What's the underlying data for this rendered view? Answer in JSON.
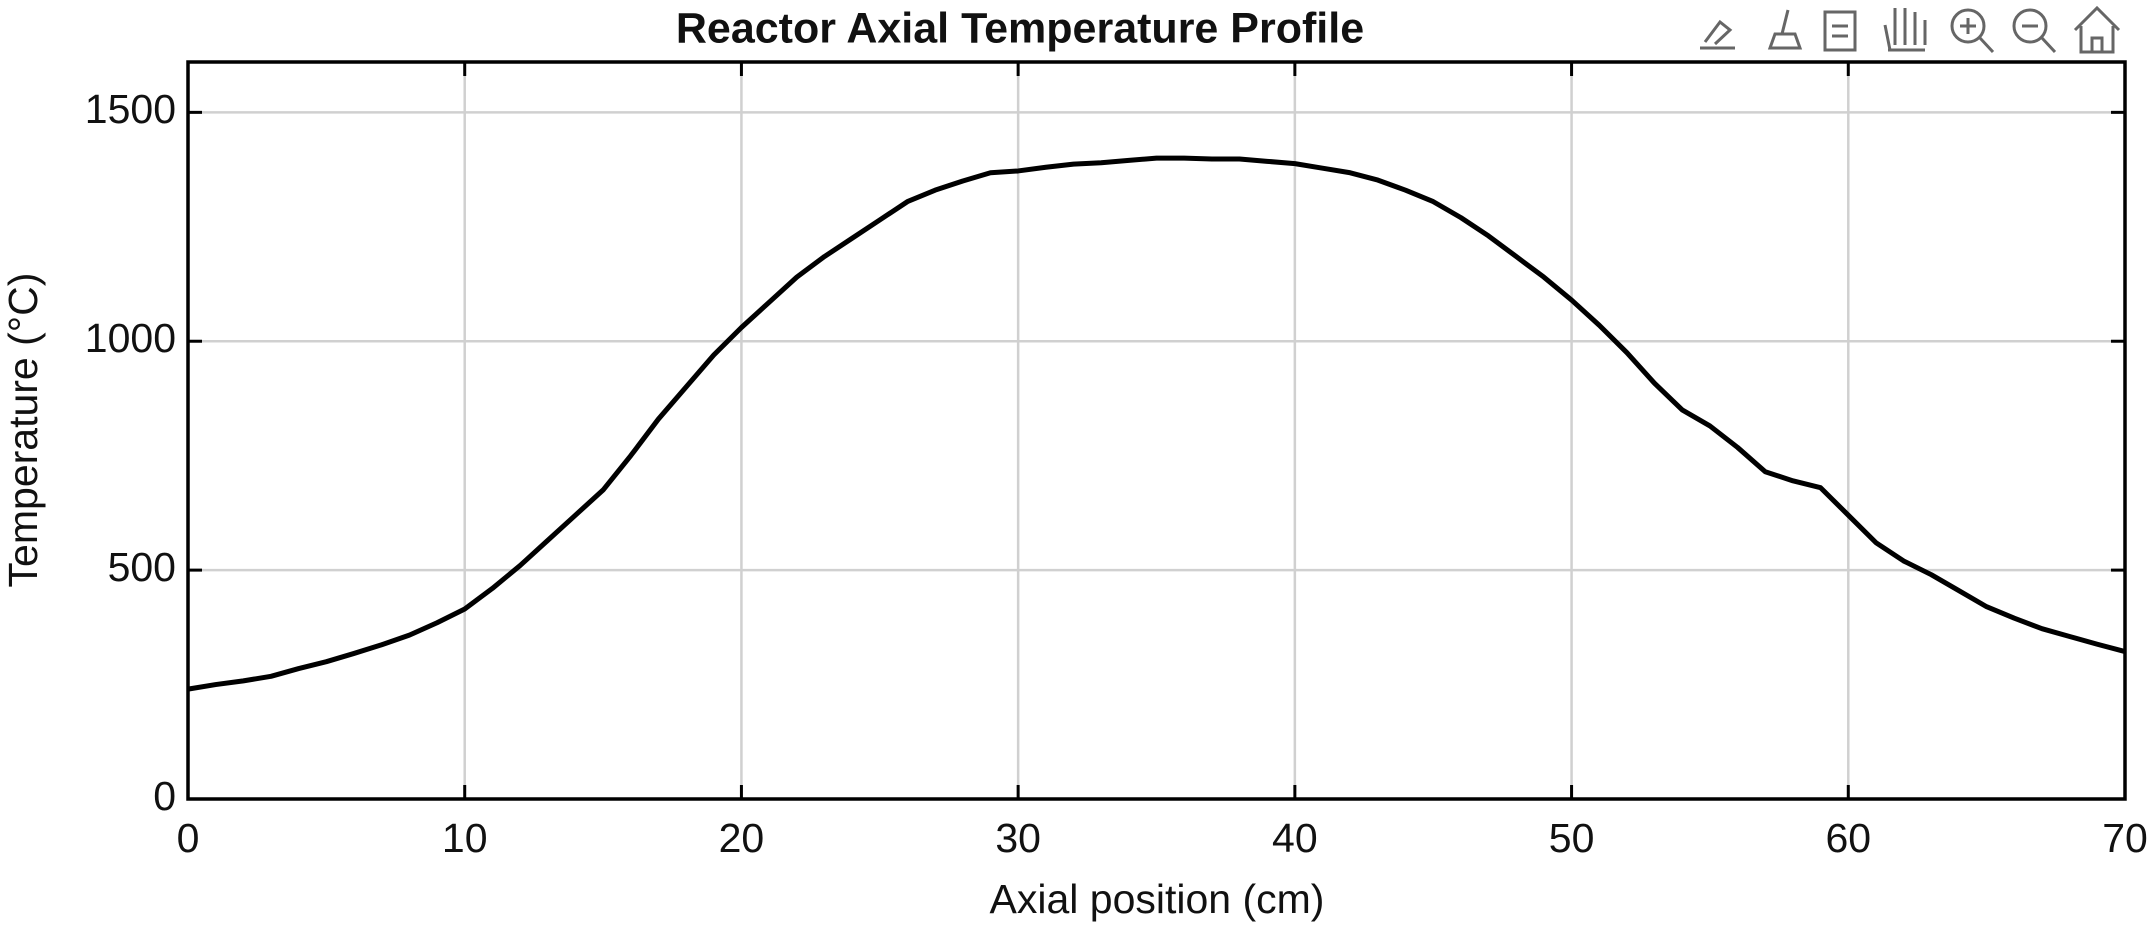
{
  "chart_data": {
    "type": "line",
    "title": "Reactor Axial Temperature Profile",
    "x_label": "Axial position (cm)",
    "y_label": "Temperature (°C)",
    "x": [
      0,
      1,
      2,
      3,
      4,
      5,
      6,
      7,
      8,
      9,
      10,
      11,
      12,
      13,
      14,
      15,
      16,
      17,
      18,
      19,
      20,
      21,
      22,
      23,
      24,
      25,
      26,
      27,
      28,
      29,
      30,
      31,
      32,
      33,
      34,
      35,
      36,
      37,
      38,
      39,
      40,
      41,
      42,
      43,
      44,
      45,
      46,
      47,
      48,
      49,
      50,
      51,
      52,
      53,
      54,
      55,
      56,
      57,
      58,
      59,
      60,
      61,
      62,
      63,
      64,
      65,
      66,
      67,
      68,
      69,
      70
    ],
    "series": [
      {
        "color": "#000000",
        "values": [
          240,
          250,
          258,
          268,
          285,
          300,
          318,
          337,
          358,
          385,
          415,
          460,
          510,
          565,
          620,
          675,
          750,
          830,
          900,
          970,
          1030,
          1085,
          1140,
          1185,
          1225,
          1265,
          1305,
          1330,
          1350,
          1368,
          1372,
          1380,
          1387,
          1390,
          1395,
          1400,
          1400,
          1398,
          1398,
          1393,
          1388,
          1378,
          1368,
          1352,
          1330,
          1305,
          1270,
          1230,
          1185,
          1140,
          1090,
          1035,
          975,
          908,
          850,
          815,
          768,
          715,
          695,
          680,
          620,
          560,
          520,
          490,
          455,
          420,
          395,
          372,
          355,
          338,
          322
        ]
      }
    ],
    "xlim": [
      0,
      70
    ],
    "xticks": [
      0,
      10,
      20,
      30,
      40,
      50,
      60,
      70
    ],
    "ylim": [
      0,
      1610
    ],
    "yticks": [
      0,
      500,
      1000,
      1500
    ],
    "grid": true
  }
}
